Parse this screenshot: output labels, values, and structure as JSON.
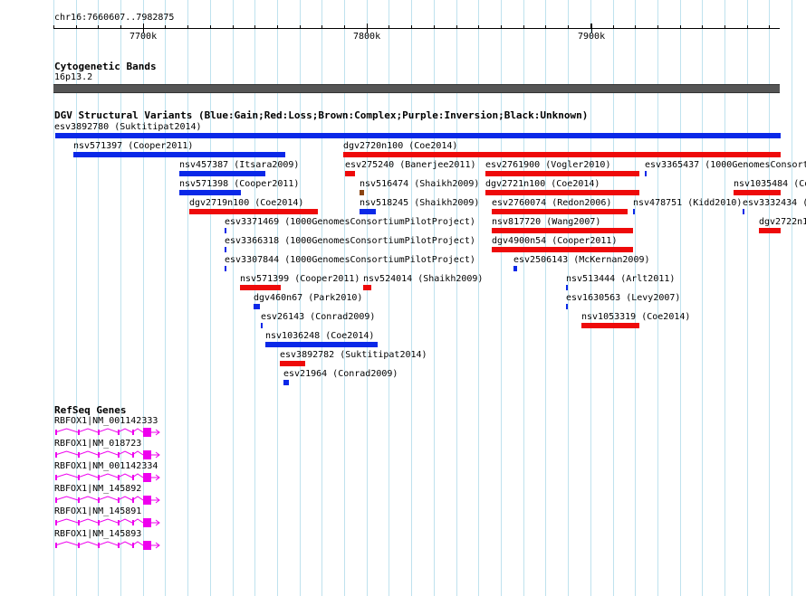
{
  "ruler": {
    "coordinates": "chr16:7660607..7982875",
    "ticks": [
      "7700k",
      "7800k",
      "7900k"
    ]
  },
  "cytobands": {
    "title": "Cytogenetic Bands",
    "band": "16p13.2"
  },
  "dgv": {
    "title": "DGV Structural Variants (Blue:Gain;Red:Loss;Brown:Complex;Purple:Inversion;Black:Unknown)",
    "colors": {
      "gain": "#0a28e8",
      "loss": "#ee0a0a",
      "complex": "#8b4513"
    },
    "variants": [
      {
        "label": "esv3892780 (Suktitipat2014)",
        "type": "gain"
      },
      {
        "label": "nsv571397 (Cooper2011)",
        "type": "gain"
      },
      {
        "label": "dgv2720n100 (Coe2014)",
        "type": "loss"
      },
      {
        "label": "nsv457387 (Itsara2009)",
        "type": "gain"
      },
      {
        "label": "esv275240 (Banerjee2011)",
        "type": "loss"
      },
      {
        "label": "esv2761900 (Vogler2010)",
        "type": "loss"
      },
      {
        "label": "esv3365437 (1000GenomesConsort",
        "type": "gain"
      },
      {
        "label": "nsv571398 (Cooper2011)",
        "type": "gain"
      },
      {
        "label": "nsv516474 (Shaikh2009)",
        "type": "complex"
      },
      {
        "label": "dgv2721n100 (Coe2014)",
        "type": "loss"
      },
      {
        "label": "nsv1035484 (Co",
        "type": "loss"
      },
      {
        "label": "dgv2719n100 (Coe2014)",
        "type": "loss"
      },
      {
        "label": "nsv518245 (Shaikh2009)",
        "type": "gain"
      },
      {
        "label": "esv2760074 (Redon2006)",
        "type": "loss"
      },
      {
        "label": "nsv478751 (Kidd2010)",
        "type": "gain"
      },
      {
        "label": "esv3332434 (",
        "type": "gain"
      },
      {
        "label": "esv3371469 (1000GenomesConsortiumPilotProject)",
        "type": "gain"
      },
      {
        "label": "nsv817720 (Wang2007)",
        "type": "loss"
      },
      {
        "label": "dgv2722n1",
        "type": "loss"
      },
      {
        "label": "esv3366318 (1000GenomesConsortiumPilotProject)",
        "type": "gain"
      },
      {
        "label": "dgv4900n54 (Cooper2011)",
        "type": "loss"
      },
      {
        "label": "esv3307844 (1000GenomesConsortiumPilotProject)",
        "type": "gain"
      },
      {
        "label": "esv2506143 (McKernan2009)",
        "type": "gain"
      },
      {
        "label": "nsv571399 (Cooper2011)",
        "type": "loss"
      },
      {
        "label": "nsv524014 (Shaikh2009)",
        "type": "loss"
      },
      {
        "label": "nsv513444 (Arlt2011)",
        "type": "gain"
      },
      {
        "label": "dgv460n67 (Park2010)",
        "type": "gain"
      },
      {
        "label": "esv1630563 (Levy2007)",
        "type": "gain"
      },
      {
        "label": "esv26143 (Conrad2009)",
        "type": "gain"
      },
      {
        "label": "nsv1053319 (Coe2014)",
        "type": "loss"
      },
      {
        "label": "nsv1036248 (Coe2014)",
        "type": "gain"
      },
      {
        "label": "esv3892782 (Suktitipat2014)",
        "type": "loss"
      },
      {
        "label": "esv21964 (Conrad2009)",
        "type": "gain"
      }
    ]
  },
  "refseq": {
    "title": "RefSeq Genes",
    "gene_color": "#ee00ee",
    "genes": [
      {
        "label": "RBFOX1|NM_001142333"
      },
      {
        "label": "RBFOX1|NM_018723"
      },
      {
        "label": "RBFOX1|NM_001142334"
      },
      {
        "label": "RBFOX1|NM_145892"
      },
      {
        "label": "RBFOX1|NM_145891"
      },
      {
        "label": "RBFOX1|NM_145893"
      }
    ]
  }
}
